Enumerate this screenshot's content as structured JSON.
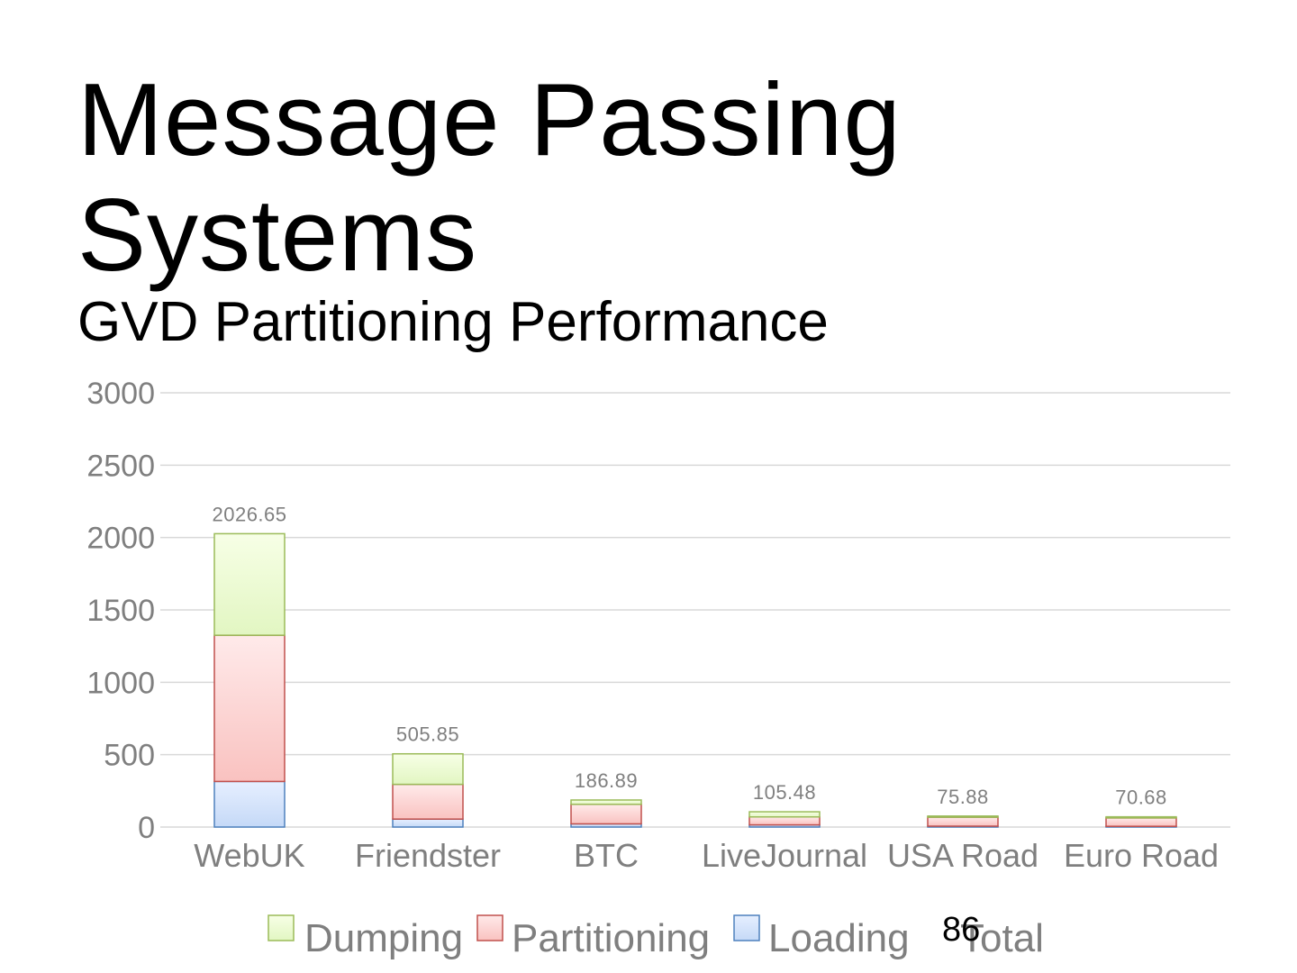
{
  "slide": {
    "title": "Message Passing Systems",
    "subtitle": "GVD Partitioning Performance",
    "page_number": "86"
  },
  "chart_data": {
    "type": "bar",
    "stacked": true,
    "title": "",
    "xlabel": "",
    "ylabel": "",
    "categories": [
      "WebUK",
      "Friendster",
      "BTC",
      "LiveJournal",
      "USA Road",
      "Euro Road"
    ],
    "series": [
      {
        "name": "Loading",
        "values": [
          315,
          55,
          22,
          15,
          6,
          5
        ],
        "fill_top": "#e6efff",
        "fill_bottom": "#c5d9f7",
        "stroke": "#4f81bd"
      },
      {
        "name": "Partitioning",
        "values": [
          1010,
          240,
          135,
          55,
          62,
          58
        ],
        "fill_top": "#ffeaea",
        "fill_bottom": "#f9c2c0",
        "stroke": "#c0504d"
      },
      {
        "name": "Dumping",
        "values": [
          701.65,
          210.85,
          29.89,
          35.48,
          7.88,
          7.68
        ],
        "fill_top": "#f7ffe6",
        "fill_bottom": "#e2f6c2",
        "stroke": "#9bbb59"
      }
    ],
    "totals": {
      "name": "Total",
      "values": [
        2026.65,
        505.85,
        186.89,
        105.48,
        75.88,
        70.68
      ],
      "labels": [
        "2026.65",
        "505.85",
        "186.89",
        "105.48",
        "75.88",
        "70.68"
      ]
    },
    "ylim": [
      0,
      3000
    ],
    "yticks": [
      0,
      500,
      1000,
      1500,
      2000,
      2500,
      3000
    ],
    "grid": true,
    "legend_position": "bottom",
    "legend_order": [
      "Dumping",
      "Partitioning",
      "Loading",
      "Total"
    ],
    "colors": {
      "axis_text": "#7f7f7f",
      "gridline": "#d9d9d9"
    }
  }
}
